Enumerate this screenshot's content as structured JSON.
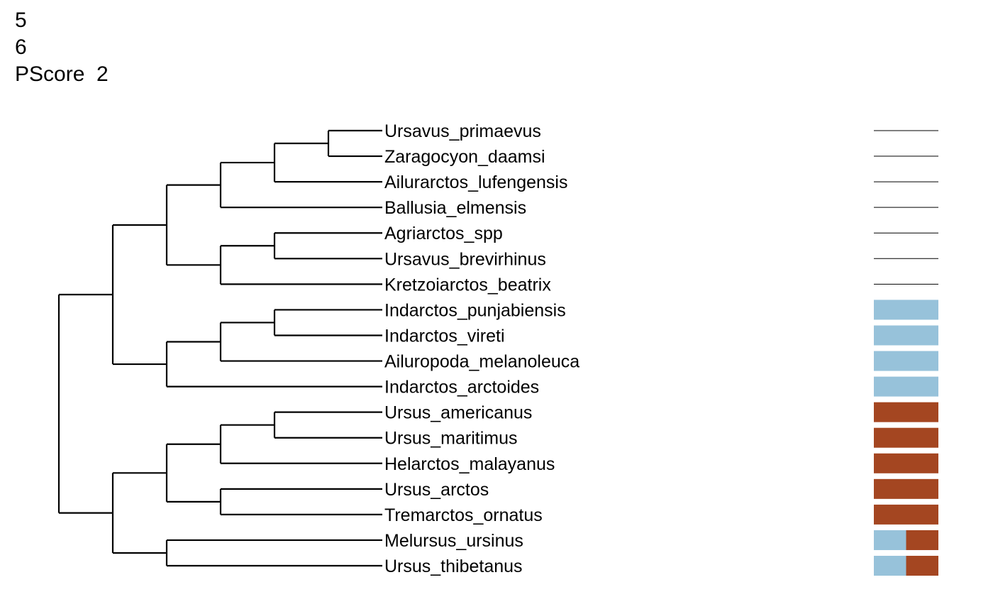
{
  "header": {
    "line1": "5",
    "line2": "6",
    "line3": "PScore  2"
  },
  "colors": {
    "state_blue": "#97c2da",
    "state_rust": "#a44621",
    "branch": "#000000"
  },
  "taxa": [
    {
      "name": "Ursavus_primaevus",
      "states": []
    },
    {
      "name": "Zaragocyon_daamsi",
      "states": []
    },
    {
      "name": "Ailurarctos_lufengensis",
      "states": []
    },
    {
      "name": "Ballusia_elmensis",
      "states": []
    },
    {
      "name": "Agriarctos_spp",
      "states": []
    },
    {
      "name": "Ursavus_brevirhinus",
      "states": []
    },
    {
      "name": "Kretzoiarctos_beatrix",
      "states": []
    },
    {
      "name": "Indarctos_punjabiensis",
      "states": [
        "blue"
      ]
    },
    {
      "name": "Indarctos_vireti",
      "states": [
        "blue"
      ]
    },
    {
      "name": "Ailuropoda_melanoleuca",
      "states": [
        "blue"
      ]
    },
    {
      "name": "Indarctos_arctoides",
      "states": [
        "blue"
      ]
    },
    {
      "name": "Ursus_americanus",
      "states": [
        "rust"
      ]
    },
    {
      "name": "Ursus_maritimus",
      "states": [
        "rust"
      ]
    },
    {
      "name": "Helarctos_malayanus",
      "states": [
        "rust"
      ]
    },
    {
      "name": "Ursus_arctos",
      "states": [
        "rust"
      ]
    },
    {
      "name": "Tremarctos_ornatus",
      "states": [
        "rust"
      ]
    },
    {
      "name": "Melursus_ursinus",
      "states": [
        "blue",
        "rust"
      ]
    },
    {
      "name": "Ursus_thibetanus",
      "states": [
        "blue",
        "rust"
      ]
    }
  ],
  "tree": {
    "children": [
      {
        "children": [
          {
            "children": [
              {
                "children": [
                  {
                    "children": [
                      {
                        "children": [
                          {
                            "tip": 0
                          },
                          {
                            "tip": 1
                          }
                        ]
                      },
                      {
                        "tip": 2
                      }
                    ]
                  },
                  {
                    "tip": 3
                  }
                ]
              },
              {
                "children": [
                  {
                    "children": [
                      {
                        "tip": 4
                      },
                      {
                        "tip": 5
                      }
                    ]
                  },
                  {
                    "tip": 6
                  }
                ]
              }
            ]
          },
          {
            "children": [
              {
                "children": [
                  {
                    "children": [
                      {
                        "tip": 7
                      },
                      {
                        "tip": 8
                      }
                    ]
                  },
                  {
                    "tip": 9
                  }
                ]
              },
              {
                "tip": 10
              }
            ]
          }
        ]
      },
      {
        "children": [
          {
            "children": [
              {
                "children": [
                  {
                    "children": [
                      {
                        "tip": 11
                      },
                      {
                        "tip": 12
                      }
                    ]
                  },
                  {
                    "tip": 13
                  }
                ]
              },
              {
                "children": [
                  {
                    "tip": 14
                  },
                  {
                    "tip": 15
                  }
                ]
              }
            ]
          },
          {
            "children": [
              {
                "tip": 16
              },
              {
                "tip": 17
              }
            ]
          }
        ]
      }
    ]
  }
}
